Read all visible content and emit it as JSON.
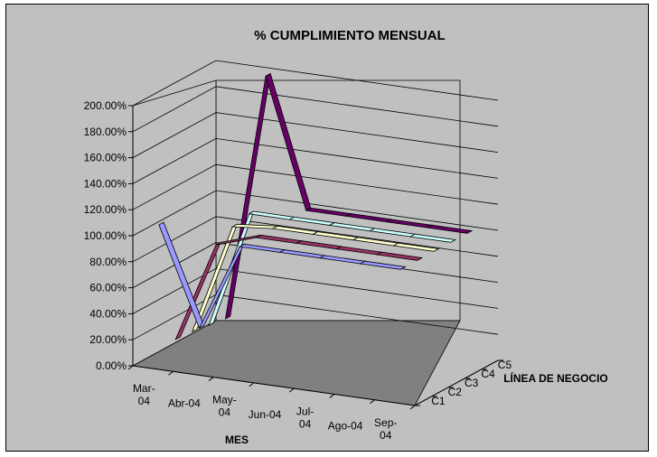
{
  "chart_data": {
    "type": "line",
    "title": "% CUMPLIMIENTO MENSUAL",
    "xlabel": "MES",
    "zlabel": "LÍNEA DE NEGOCIO",
    "categories": [
      "Mar-04",
      "Abr-04",
      "May-04",
      "Jun-04",
      "Jul-04",
      "Ago-04",
      "Sep-04"
    ],
    "yticks": [
      "0.00%",
      "20.00%",
      "40.00%",
      "60.00%",
      "80.00%",
      "100.00%",
      "120.00%",
      "140.00%",
      "160.00%",
      "180.00%",
      "200.00%"
    ],
    "ylim": [
      0,
      200
    ],
    "grid": true,
    "series": [
      {
        "name": "C1",
        "color": "#9999ff",
        "values": [
          108,
          33,
          100,
          100,
          100,
          100,
          100
        ]
      },
      {
        "name": "C2",
        "color": "#993366",
        "values": [
          13,
          90,
          100,
          100,
          100,
          100,
          100
        ]
      },
      {
        "name": "C3",
        "color": "#ffffcc",
        "values": [
          12,
          97,
          100,
          100,
          100,
          100,
          100
        ]
      },
      {
        "name": "C4",
        "color": "#ccffff",
        "values": [
          10,
          100,
          100,
          100,
          100,
          100,
          100
        ]
      },
      {
        "name": "C5",
        "color": "#660066",
        "values": [
          8,
          199,
          100,
          100,
          100,
          100,
          100
        ]
      }
    ]
  }
}
